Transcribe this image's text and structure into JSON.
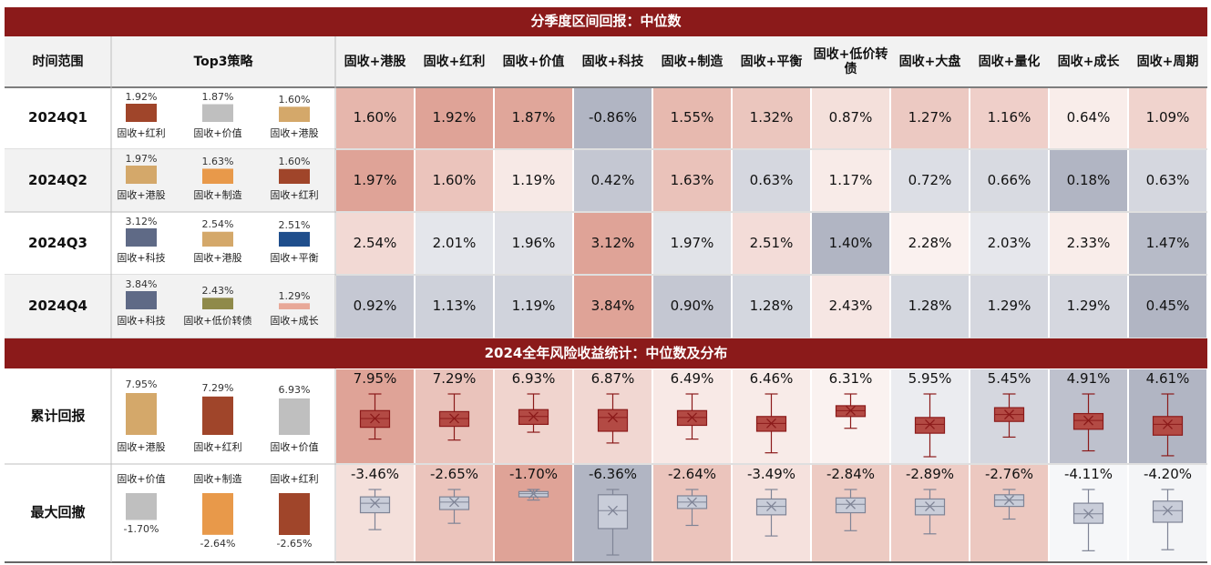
{
  "quarterly": {
    "title": "分季度区间回报：中位数",
    "header": {
      "period": "时间范围",
      "top3": "Top3策略",
      "strategies": [
        "固收+港股",
        "固收+红利",
        "固收+价值",
        "固收+科技",
        "固收+制造",
        "固收+平衡",
        "固收+低价转债",
        "固收+大盘",
        "固收+量化",
        "固收+成长",
        "固收+周期"
      ]
    },
    "rows": [
      {
        "period": "2024Q1",
        "top3": [
          {
            "name": "固收+红利",
            "value": 1.92,
            "label": "1.92%",
            "color": "#a0452a"
          },
          {
            "name": "固收+价值",
            "value": 1.87,
            "label": "1.87%",
            "color": "#bfbfbf"
          },
          {
            "name": "固收+港股",
            "value": 1.6,
            "label": "1.60%",
            "color": "#d4a86a"
          }
        ],
        "values": [
          1.6,
          1.92,
          1.87,
          -0.86,
          1.55,
          1.32,
          0.87,
          1.27,
          1.16,
          0.64,
          1.09
        ],
        "value_labels": [
          "1.60%",
          "1.92%",
          "1.87%",
          "-0.86%",
          "1.55%",
          "1.32%",
          "0.87%",
          "1.27%",
          "1.16%",
          "0.64%",
          "1.09%"
        ]
      },
      {
        "period": "2024Q2",
        "top3": [
          {
            "name": "固收+港股",
            "value": 1.97,
            "label": "1.97%",
            "color": "#d4a86a"
          },
          {
            "name": "固收+制造",
            "value": 1.63,
            "label": "1.63%",
            "color": "#e8994a"
          },
          {
            "name": "固收+红利",
            "value": 1.6,
            "label": "1.60%",
            "color": "#a0452a"
          }
        ],
        "values": [
          1.97,
          1.6,
          1.19,
          0.42,
          1.63,
          0.63,
          1.17,
          0.72,
          0.66,
          0.18,
          0.63
        ],
        "value_labels": [
          "1.97%",
          "1.60%",
          "1.19%",
          "0.42%",
          "1.63%",
          "0.63%",
          "1.17%",
          "0.72%",
          "0.66%",
          "0.18%",
          "0.63%"
        ]
      },
      {
        "period": "2024Q3",
        "top3": [
          {
            "name": "固收+科技",
            "value": 3.12,
            "label": "3.12%",
            "color": "#5f6a86"
          },
          {
            "name": "固收+港股",
            "value": 2.54,
            "label": "2.54%",
            "color": "#d4a86a"
          },
          {
            "name": "固收+平衡",
            "value": 2.51,
            "label": "2.51%",
            "color": "#1f4e8c"
          }
        ],
        "values": [
          2.54,
          2.01,
          1.96,
          3.12,
          1.97,
          2.51,
          1.4,
          2.28,
          2.03,
          2.33,
          1.47
        ],
        "value_labels": [
          "2.54%",
          "2.01%",
          "1.96%",
          "3.12%",
          "1.97%",
          "2.51%",
          "1.40%",
          "2.28%",
          "2.03%",
          "2.33%",
          "1.47%"
        ]
      },
      {
        "period": "2024Q4",
        "top3": [
          {
            "name": "固收+科技",
            "value": 3.84,
            "label": "3.84%",
            "color": "#5f6a86"
          },
          {
            "name": "固收+低价转债",
            "value": 2.43,
            "label": "2.43%",
            "color": "#8f8a4a"
          },
          {
            "name": "固收+成长",
            "value": 1.29,
            "label": "1.29%",
            "color": "#e8a898"
          }
        ],
        "values": [
          0.92,
          1.13,
          1.19,
          3.84,
          0.9,
          1.28,
          2.43,
          1.28,
          1.29,
          1.29,
          0.45
        ],
        "value_labels": [
          "0.92%",
          "1.13%",
          "1.19%",
          "3.84%",
          "0.90%",
          "1.28%",
          "2.43%",
          "1.28%",
          "1.29%",
          "1.29%",
          "0.45%"
        ]
      }
    ]
  },
  "annual": {
    "title": "2024全年风险收益统计：中位数及分布",
    "rows": [
      {
        "metric": "累计回报",
        "top3": [
          {
            "name": "固收+港股",
            "value": 7.95,
            "label": "7.95%",
            "color": "#d4a86a"
          },
          {
            "name": "固收+红利",
            "value": 7.29,
            "label": "7.29%",
            "color": "#a0452a"
          },
          {
            "name": "固收+价值",
            "value": 6.93,
            "label": "6.93%",
            "color": "#bfbfbf"
          }
        ],
        "values": [
          7.95,
          7.29,
          6.93,
          6.87,
          6.49,
          6.46,
          6.31,
          5.95,
          5.45,
          4.91,
          4.61
        ],
        "value_labels": [
          "7.95%",
          "7.29%",
          "6.93%",
          "6.87%",
          "6.49%",
          "6.46%",
          "6.31%",
          "5.95%",
          "5.45%",
          "4.91%",
          "4.61%"
        ],
        "box_color": "#b34a44",
        "box_stroke": "#8b1a1a",
        "boxes": [
          [
            5.43,
            6.87,
            7.95,
            8.91,
            10.95
          ],
          [
            4.65,
            6.33,
            7.29,
            8.13,
            10.29
          ],
          [
            5.01,
            5.97,
            6.93,
            7.77,
            9.69
          ],
          [
            3.75,
            5.19,
            6.87,
            7.83,
            9.75
          ],
          [
            3.85,
            5.53,
            6.49,
            7.33,
            9.37
          ],
          [
            2.86,
            5.5,
            6.46,
            7.3,
            10.06
          ],
          [
            4.15,
            5.59,
            6.31,
            6.91,
            8.35
          ],
          [
            1.99,
            4.87,
            5.95,
            6.79,
            9.67
          ],
          [
            2.69,
            4.61,
            5.45,
            6.29,
            7.97
          ],
          [
            1.19,
            3.83,
            4.91,
            5.75,
            8.15
          ],
          [
            0.77,
            3.29,
            4.61,
            5.57,
            8.33
          ]
        ]
      },
      {
        "metric": "最大回撤",
        "top3": [
          {
            "name": "固收+价值",
            "value": -1.7,
            "label": "-1.70%",
            "color": "#bfbfbf"
          },
          {
            "name": "固收+制造",
            "value": -2.64,
            "label": "-2.64%",
            "color": "#e8994a"
          },
          {
            "name": "固收+红利",
            "value": -2.65,
            "label": "-2.65%",
            "color": "#a0452a"
          }
        ],
        "values": [
          -3.46,
          -2.65,
          -1.7,
          -6.36,
          -2.64,
          -3.49,
          -2.84,
          -2.89,
          -2.76,
          -4.11,
          -4.2
        ],
        "value_labels": [
          "-3.46%",
          "-2.65%",
          "-1.70%",
          "-6.36%",
          "-2.64%",
          "-3.49%",
          "-2.84%",
          "-2.89%",
          "-2.76%",
          "-4.11%",
          "-4.20%"
        ],
        "box_color": "#c9cdd9",
        "box_stroke": "#7f8496",
        "boxes": [
          [
            -5.46,
            -4.18,
            -3.46,
            -2.98,
            -2.42
          ],
          [
            -4.25,
            -3.21,
            -2.65,
            -2.25,
            -1.69
          ],
          [
            -2.18,
            -1.94,
            -1.7,
            -1.54,
            -1.38
          ],
          [
            -9.72,
            -7.72,
            -6.36,
            -5.16,
            -4.76
          ],
          [
            -4.4,
            -3.12,
            -2.64,
            -2.16,
            -1.68
          ],
          [
            -5.73,
            -4.13,
            -3.49,
            -2.93,
            -2.21
          ],
          [
            -4.84,
            -3.48,
            -2.84,
            -2.36,
            -1.72
          ],
          [
            -4.97,
            -3.53,
            -2.89,
            -2.33,
            -1.61
          ],
          [
            -4.2,
            -3.24,
            -2.76,
            -2.36,
            -1.96
          ],
          [
            -6.91,
            -4.83,
            -4.11,
            -3.31,
            -2.27
          ],
          [
            -7.16,
            -5.08,
            -4.2,
            -3.48,
            -2.6
          ]
        ]
      }
    ]
  }
}
